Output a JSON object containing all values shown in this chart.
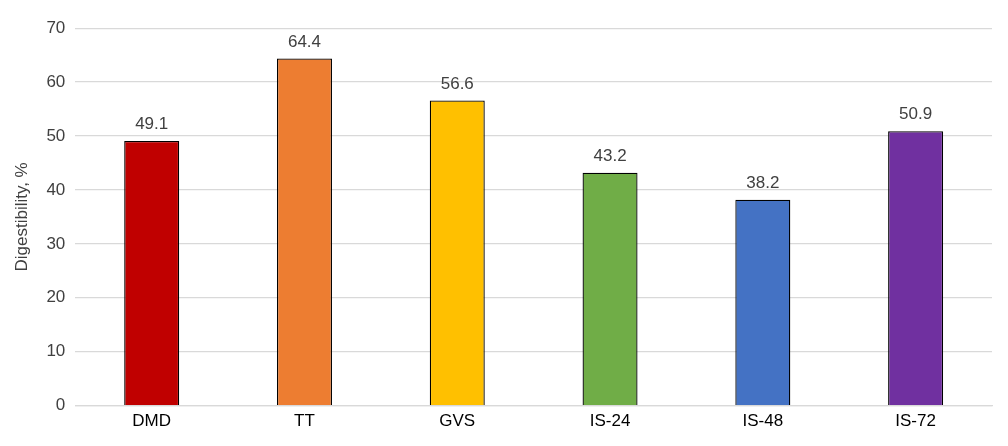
{
  "chart_data": {
    "type": "bar",
    "ylabel": "Digestibility, %",
    "categories": [
      "DMD",
      "TT",
      "GVS",
      "IS-24",
      "IS-48",
      "IS-72"
    ],
    "values": [
      49.1,
      64.4,
      56.6,
      43.2,
      38.2,
      50.9
    ],
    "colors": [
      "#c00000",
      "#ed7d31",
      "#ffc000",
      "#70ad47",
      "#4472c4",
      "#7030a0"
    ],
    "ylim": [
      0,
      70
    ],
    "yticks": [
      0,
      10,
      20,
      30,
      40,
      50,
      60,
      70
    ],
    "grid": "y",
    "data_labels": true,
    "legend": false
  }
}
